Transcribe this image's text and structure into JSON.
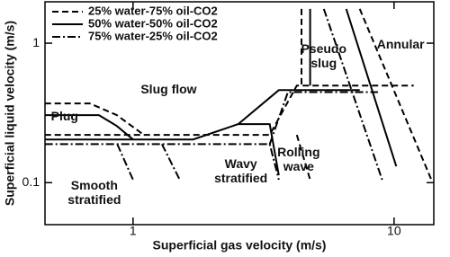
{
  "chart_data": {
    "type": "line",
    "x_label": "Superficial gas velocity (m/s)",
    "y_label": "Superficial liquid velocity (m/s)",
    "log_x": true,
    "log_y": true,
    "xlim": [
      0.46,
      14.2
    ],
    "ylim": [
      0.05,
      1.98
    ],
    "xticks": [
      1,
      10
    ],
    "yticks": [
      0.1,
      1
    ],
    "legend": "upper left",
    "series": [
      {
        "name": "25% water-75% oil-CO2",
        "color": "#000000",
        "dash": "7,4",
        "x": [
          0.459,
          0.683,
          0.867,
          1.1,
          null,
          0.459,
          3.34,
          4.24,
          11.9,
          null,
          4.24,
          4.77,
          null,
          7.39,
          13.9,
          null,
          4.42,
          4.42
        ],
        "values": [
          0.37,
          0.37,
          0.305,
          0.22,
          null,
          0.22,
          0.22,
          0.497,
          0.497,
          null,
          0.22,
          0.105,
          null,
          1.76,
          0.105,
          null,
          1.76,
          0.497
        ]
      },
      {
        "name": "50% water-50% oil-CO2",
        "color": "#000000",
        "dash": "none",
        "x": [
          0.459,
          0.74,
          0.867,
          1.0,
          null,
          0.459,
          1.7,
          2.53,
          3.62,
          7.39,
          null,
          2.53,
          3.34,
          3.62,
          null,
          6.56,
          10.2,
          null,
          4.77,
          4.77
        ],
        "values": [
          0.305,
          0.305,
          0.255,
          0.204,
          null,
          0.204,
          0.204,
          0.263,
          0.461,
          0.461,
          null,
          0.263,
          0.263,
          0.113,
          null,
          1.76,
          0.131,
          null,
          1.76,
          0.497
        ]
      },
      {
        "name": "75% water-25% oil-CO2",
        "color": "#000000",
        "dash": "9,3,2,3",
        "x": [
          0.459,
          3.34,
          3.62,
          null,
          1.29,
          1.51,
          null,
          0.87,
          1.0,
          null,
          3.34,
          3.92,
          8.67,
          null,
          5.38,
          9.0
        ],
        "values": [
          0.189,
          0.189,
          0.105,
          null,
          0.189,
          0.105,
          null,
          0.189,
          0.105,
          null,
          0.189,
          0.446,
          0.446,
          null,
          1.76,
          0.105
        ]
      }
    ],
    "annotations": [
      {
        "text": [
          "Slug flow"
        ],
        "x": 1.37,
        "y": 0.461
      },
      {
        "text": [
          "Plug"
        ],
        "x": 0.547,
        "y": 0.295
      },
      {
        "text": [
          "Smooth",
          "stratified"
        ],
        "x": 0.711,
        "y": 0.094
      },
      {
        "text": [
          "Wavy",
          "stratified"
        ],
        "x": 2.59,
        "y": 0.134
      },
      {
        "text": [
          "Rolling",
          "wave"
        ],
        "x": 4.31,
        "y": 0.163
      },
      {
        "text": [
          "Pseudo",
          "slug"
        ],
        "x": 5.38,
        "y": 0.9
      },
      {
        "text": [
          "Annular"
        ],
        "x": 10.6,
        "y": 0.97
      }
    ]
  }
}
